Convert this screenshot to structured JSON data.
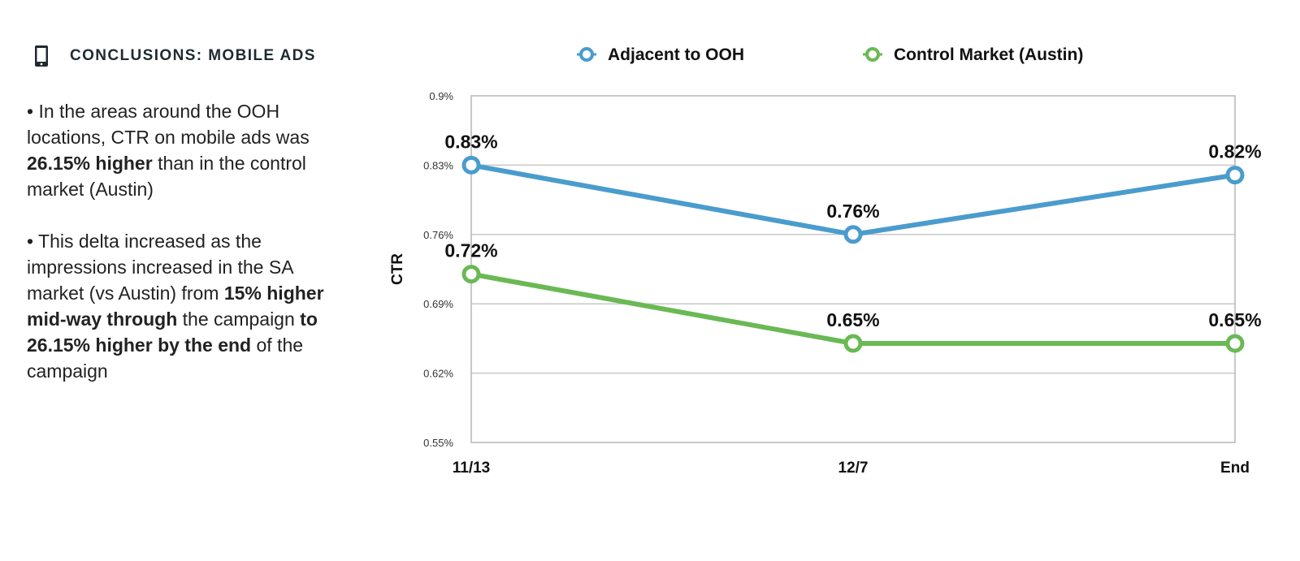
{
  "header": {
    "title": "CONCLUSIONS: MOBILE ADS",
    "icon": "mobile-phone-icon"
  },
  "bullets": [
    [
      {
        "t": "• In the areas around the OOH locations, CTR on mobile ads was ",
        "b": false
      },
      {
        "t": "26.15% higher",
        "b": true
      },
      {
        "t": " than in the control market (Austin)",
        "b": false
      }
    ],
    [
      {
        "t": "• This delta increased as the impressions increased in the SA market (vs Austin) from ",
        "b": false
      },
      {
        "t": "15% higher mid-way through",
        "b": true
      },
      {
        "t": " the campaign ",
        "b": false
      },
      {
        "t": "to 26.15% higher by the end",
        "b": true
      },
      {
        "t": " of the campaign",
        "b": false
      }
    ]
  ],
  "chart_data": {
    "type": "line",
    "title": "",
    "xlabel": "",
    "ylabel": "CTR",
    "categories": [
      "11/13",
      "12/7",
      "End"
    ],
    "ylim": [
      0.55,
      0.9
    ],
    "yticks": [
      "0.55%",
      "0.62%",
      "0.69%",
      "0.76%",
      "0.83%",
      "0.9%"
    ],
    "ytick_values": [
      0.55,
      0.62,
      0.69,
      0.76,
      0.83,
      0.9
    ],
    "grid": true,
    "legend_position": "top",
    "series": [
      {
        "name": "Adjacent to OOH",
        "color": "#4a9ccd",
        "values": [
          0.83,
          0.76,
          0.82
        ],
        "labels": [
          "0.83%",
          "0.76%",
          "0.82%"
        ]
      },
      {
        "name": "Control Market (Austin)",
        "color": "#6ab954",
        "values": [
          0.72,
          0.65,
          0.65
        ],
        "labels": [
          "0.72%",
          "0.65%",
          "0.65%"
        ]
      }
    ]
  }
}
